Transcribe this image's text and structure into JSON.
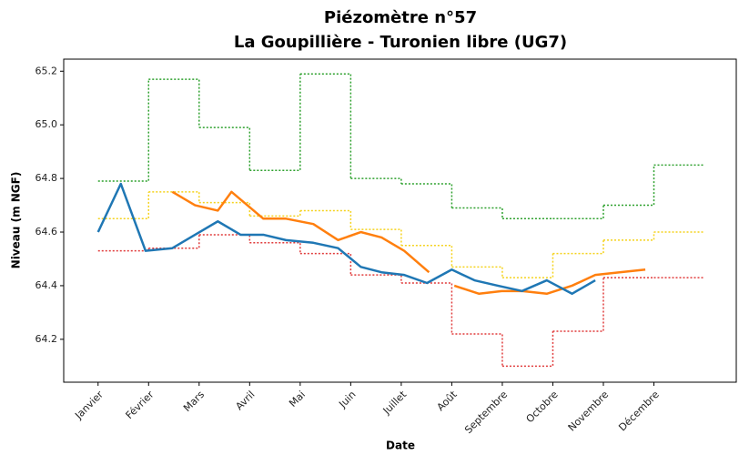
{
  "chart_data": {
    "type": "line",
    "title": "Piézomètre n°57",
    "subtitle": "La Goupillière - Turonien libre (UG7)",
    "x_label": "Date",
    "y_label": "Niveau (m NGF)",
    "xlim": [
      -0.68,
      12.63
    ],
    "ylim": [
      64.04,
      65.245
    ],
    "xticks": [
      {
        "value": 0,
        "label": "Janvier"
      },
      {
        "value": 1,
        "label": "Février"
      },
      {
        "value": 2,
        "label": "Mars"
      },
      {
        "value": 3,
        "label": "Avril"
      },
      {
        "value": 4,
        "label": "Mai"
      },
      {
        "value": 5,
        "label": "Juin"
      },
      {
        "value": 6,
        "label": "Juillet"
      },
      {
        "value": 7,
        "label": "Août"
      },
      {
        "value": 8,
        "label": "Septembre"
      },
      {
        "value": 9,
        "label": "Octobre"
      },
      {
        "value": 10,
        "label": "Novembre"
      },
      {
        "value": 11,
        "label": "Décembre"
      }
    ],
    "yticks": [
      64.2,
      64.4,
      64.6,
      64.8,
      {
        "value": 65,
        "label": "65.0"
      },
      65.2
    ],
    "series": [
      {
        "color": "#2ca02c",
        "drawstyle": "steps",
        "linestyle": "dotted",
        "x": [
          0,
          1,
          2,
          3,
          4,
          5,
          6,
          7,
          8,
          9,
          10,
          11
        ],
        "values": [
          64.79,
          65.17,
          64.99,
          64.83,
          65.19,
          64.8,
          64.78,
          64.69,
          64.65,
          64.65,
          64.7,
          64.85
        ]
      },
      {
        "color": "#f5d21a",
        "drawstyle": "steps",
        "linestyle": "dotted",
        "x": [
          0,
          1,
          2,
          3,
          4,
          5,
          6,
          7,
          8,
          9,
          10,
          11
        ],
        "values": [
          64.65,
          64.75,
          64.71,
          64.66,
          64.68,
          64.61,
          64.55,
          64.47,
          64.43,
          64.52,
          64.57,
          64.6
        ]
      },
      {
        "color": "#e03a3a",
        "drawstyle": "steps",
        "linestyle": "dotted",
        "x": [
          0,
          1,
          2,
          3,
          4,
          5,
          6,
          7,
          8,
          9,
          10,
          11
        ],
        "values": [
          64.53,
          64.54,
          64.59,
          64.56,
          64.52,
          64.44,
          64.41,
          64.22,
          64.1,
          64.23,
          64.43,
          64.43
        ]
      },
      {
        "color": "#ff7f0e",
        "drawstyle": "default",
        "linestyle": "solid",
        "x": [
          1.47,
          1.92,
          2.37,
          2.64,
          3.27,
          3.72,
          4.26,
          4.75,
          5.2,
          5.61,
          6.06,
          6.55,
          null,
          7.05,
          7.54,
          7.99,
          8.4,
          8.88,
          9.38,
          9.84,
          10.32,
          10.83
        ],
        "values": [
          64.75,
          64.7,
          64.68,
          64.75,
          64.65,
          64.65,
          64.63,
          64.57,
          64.6,
          64.58,
          64.53,
          64.45,
          null,
          64.4,
          64.37,
          64.38,
          64.38,
          64.37,
          64.4,
          64.44,
          64.45,
          64.46
        ]
      },
      {
        "color": "#1f77b4",
        "drawstyle": "default",
        "linestyle": "solid",
        "x": [
          0,
          0.45,
          0.94,
          1.47,
          1.92,
          2.37,
          2.82,
          3.27,
          3.72,
          4.26,
          4.75,
          5.2,
          5.61,
          6.06,
          6.51,
          7.0,
          7.45,
          7.91,
          8.39,
          8.88,
          9.38,
          9.84
        ],
        "values": [
          64.6,
          64.78,
          64.53,
          64.54,
          64.59,
          64.64,
          64.59,
          64.59,
          64.57,
          64.56,
          64.54,
          64.47,
          64.45,
          64.44,
          64.41,
          64.46,
          64.42,
          64.4,
          64.38,
          64.42,
          64.37,
          64.42
        ]
      }
    ]
  }
}
